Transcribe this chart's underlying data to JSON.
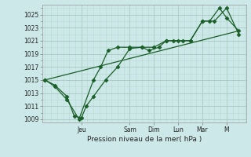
{
  "title": "",
  "xlabel": "Pression niveau de la mer( hPa )",
  "ylabel": "",
  "bg_color": "#cce8e8",
  "grid_color_major": "#a8c8c0",
  "grid_color_minor": "#b8d8d0",
  "line_color": "#1a5e28",
  "ylim": [
    1008.5,
    1026.5
  ],
  "yticks": [
    1009,
    1011,
    1013,
    1015,
    1017,
    1019,
    1021,
    1023,
    1025
  ],
  "day_labels": [
    "Jeu",
    "Sam",
    "Dim",
    "Lun",
    "Mar",
    "M"
  ],
  "day_positions": [
    1.5,
    3.5,
    4.5,
    5.5,
    6.5,
    7.5
  ],
  "series1_x": [
    0.0,
    0.4,
    0.9,
    1.2,
    1.5,
    1.7,
    2.0,
    2.5,
    3.0,
    3.5,
    4.0,
    4.3,
    4.7,
    5.0,
    5.3,
    5.7,
    6.0,
    6.5,
    6.8,
    7.2,
    7.5,
    8.0
  ],
  "series1_y": [
    1015,
    1014.2,
    1012.5,
    1009.5,
    1009.2,
    1011,
    1012.5,
    1015,
    1017,
    1019.8,
    1020,
    1019.5,
    1020,
    1021,
    1021,
    1021,
    1021,
    1024,
    1024,
    1026,
    1024.5,
    1022.5
  ],
  "series2_x": [
    0.0,
    0.4,
    0.9,
    1.4,
    2.0,
    2.3,
    2.6,
    3.0,
    3.5,
    4.0,
    4.5,
    5.0,
    5.5,
    6.0,
    6.5,
    7.0,
    7.5,
    8.0
  ],
  "series2_y": [
    1015,
    1014,
    1012,
    1009,
    1015,
    1017,
    1019.5,
    1020,
    1020,
    1020,
    1020,
    1021,
    1021,
    1021,
    1024,
    1024,
    1026,
    1022
  ],
  "trend_x": [
    0.0,
    8.0
  ],
  "trend_y": [
    1015,
    1022.5
  ],
  "xlim": [
    -0.1,
    8.3
  ]
}
